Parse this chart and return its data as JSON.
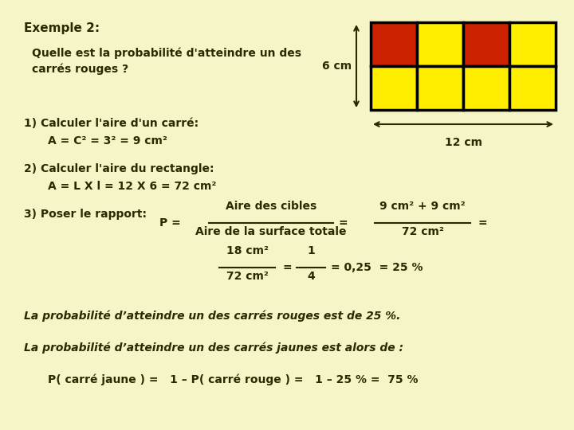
{
  "background_color": "#f5f5c8",
  "title": "Exemple 2:",
  "question_line1": "Quelle est la probabilité d'atteindre un des",
  "question_line2": "carrés rouges ?",
  "dimension_label_6cm": "6 cm",
  "dimension_label_12cm": "12 cm",
  "step1_title": "1) Calculer l'aire d'un carré:",
  "step1_formula": "A = C² = 3² = 9 cm²",
  "step2_title": "2) Calculer l'aire du rectangle:",
  "step2_formula": "A = L X l = 12 X 6 = 72 cm²",
  "step3_title": "3) Poser le rapport:",
  "step3_p_eq": "P =",
  "step3_fraction_num": "Aire des cibles",
  "step3_fraction_den": "Aire de la surface totale",
  "step3_eq1_num": "9 cm² + 9 cm²",
  "step3_eq1_den": "72 cm²",
  "step3_eq2_num": "18 cm²",
  "step3_eq2_den": "72 cm²",
  "step3_eq3_num": "1",
  "step3_eq3_den": "4",
  "step3_result": "= 0,25  = 25 %",
  "conclusion1": "La probabilité d’atteindre un des carrés rouges est de 25 %.",
  "conclusion2": "La probabilité d’atteindre un des carrés jaunes est alors de :",
  "conclusion3": "P( carré jaune ) =   1 – P( carré rouge ) =   1 – 25 % =  75 %",
  "grid_colors": [
    [
      "#cc2200",
      "#ffee00",
      "#cc2200",
      "#ffee00"
    ],
    [
      "#ffee00",
      "#ffee00",
      "#ffee00",
      "#ffee00"
    ]
  ],
  "text_color": "#2a2a00",
  "font_family": "DejaVu Sans"
}
